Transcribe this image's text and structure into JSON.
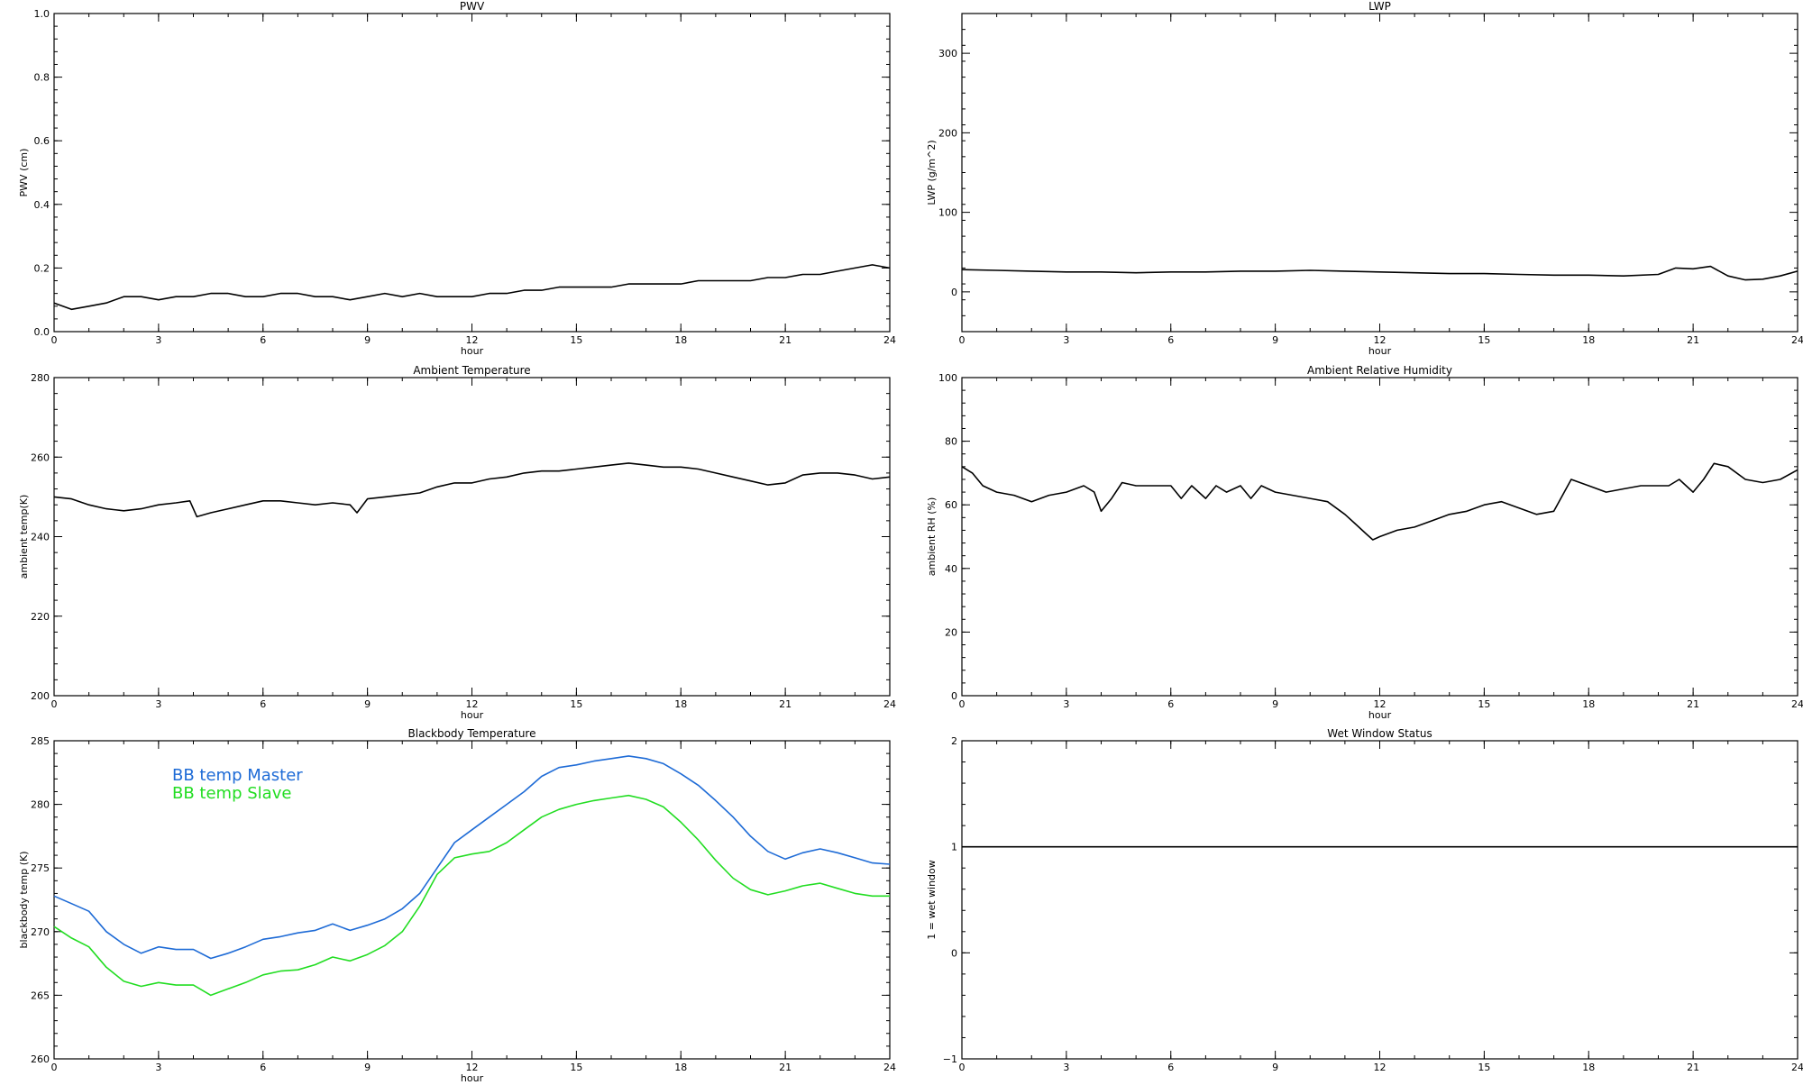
{
  "chart_data": [
    {
      "id": "pwv",
      "type": "line",
      "title": "PWV",
      "xlabel": "hour",
      "ylabel": "PWV (cm)",
      "xlim": [
        0,
        24
      ],
      "ylim": [
        0.0,
        1.0
      ],
      "xticks": [
        "0",
        "3",
        "6",
        "9",
        "12",
        "15",
        "18",
        "21",
        "24"
      ],
      "yticks": [
        "0.0",
        "0.2",
        "0.4",
        "0.6",
        "0.8",
        "1.0"
      ],
      "grid": false,
      "series": [
        {
          "color": "#000000",
          "x": [
            0,
            0.5,
            1,
            1.5,
            2,
            2.5,
            3,
            3.5,
            4,
            4.5,
            5,
            5.5,
            6,
            6.5,
            7,
            7.5,
            8,
            8.5,
            9,
            9.5,
            10,
            10.5,
            11,
            11.5,
            12,
            12.5,
            13,
            13.5,
            14,
            14.5,
            15,
            15.5,
            16,
            16.5,
            17,
            17.5,
            18,
            18.5,
            19,
            19.5,
            20,
            20.5,
            21,
            21.5,
            22,
            22.5,
            23,
            23.5,
            24
          ],
          "y": [
            0.09,
            0.07,
            0.08,
            0.09,
            0.11,
            0.11,
            0.1,
            0.11,
            0.11,
            0.12,
            0.12,
            0.11,
            0.11,
            0.12,
            0.12,
            0.11,
            0.11,
            0.1,
            0.11,
            0.12,
            0.11,
            0.12,
            0.11,
            0.11,
            0.11,
            0.12,
            0.12,
            0.13,
            0.13,
            0.14,
            0.14,
            0.14,
            0.14,
            0.15,
            0.15,
            0.15,
            0.15,
            0.16,
            0.16,
            0.16,
            0.16,
            0.17,
            0.17,
            0.18,
            0.18,
            0.19,
            0.2,
            0.21,
            0.2
          ]
        }
      ]
    },
    {
      "id": "lwp",
      "type": "line",
      "title": "LWP",
      "xlabel": "hour",
      "ylabel": "LWP (g/m^2)",
      "xlim": [
        0,
        24
      ],
      "ylim": [
        -50,
        350
      ],
      "xticks": [
        "0",
        "3",
        "6",
        "9",
        "12",
        "15",
        "18",
        "21",
        "24"
      ],
      "yticks": [
        "0",
        "100",
        "200",
        "300"
      ],
      "grid": false,
      "series": [
        {
          "color": "#000000",
          "x": [
            0,
            1,
            2,
            3,
            4,
            5,
            6,
            7,
            8,
            9,
            10,
            11,
            12,
            13,
            14,
            15,
            16,
            17,
            18,
            19,
            20,
            20.5,
            21,
            21.5,
            22,
            22.5,
            23,
            23.5,
            24
          ],
          "y": [
            28,
            27,
            26,
            25,
            25,
            24,
            25,
            25,
            26,
            26,
            27,
            26,
            25,
            24,
            23,
            23,
            22,
            21,
            21,
            20,
            22,
            30,
            29,
            32,
            20,
            15,
            16,
            20,
            26
          ]
        }
      ]
    },
    {
      "id": "ambient-temp",
      "type": "line",
      "title": "Ambient Temperature",
      "xlabel": "hour",
      "ylabel": "ambient temp(K)",
      "xlim": [
        0,
        24
      ],
      "ylim": [
        200,
        280
      ],
      "xticks": [
        "0",
        "3",
        "6",
        "9",
        "12",
        "15",
        "18",
        "21",
        "24"
      ],
      "yticks": [
        "200",
        "220",
        "240",
        "260",
        "280"
      ],
      "grid": false,
      "series": [
        {
          "color": "#000000",
          "x": [
            0,
            0.5,
            1,
            1.5,
            2,
            2.5,
            3,
            3.5,
            3.9,
            4.1,
            4.5,
            5,
            5.5,
            6,
            6.5,
            7,
            7.5,
            8,
            8.5,
            8.7,
            9,
            9.5,
            10,
            10.5,
            11,
            11.5,
            12,
            12.5,
            13,
            13.5,
            14,
            14.5,
            15,
            15.5,
            16,
            16.5,
            17,
            17.5,
            18,
            18.5,
            19,
            19.5,
            20,
            20.5,
            21,
            21.5,
            22,
            22.5,
            23,
            23.5,
            24
          ],
          "y": [
            250,
            249.5,
            248,
            247,
            246.5,
            247,
            248,
            248.5,
            249,
            245,
            246,
            247,
            248,
            249,
            249,
            248.5,
            248,
            248.5,
            248,
            246,
            249.5,
            250,
            250.5,
            251,
            252.5,
            253.5,
            253.5,
            254.5,
            255,
            256,
            256.5,
            256.5,
            257,
            257.5,
            258,
            258.5,
            258,
            257.5,
            257.5,
            257,
            256,
            255,
            254,
            253,
            253.5,
            255.5,
            256,
            256,
            255.5,
            254.5,
            255
          ]
        }
      ]
    },
    {
      "id": "ambient-rh",
      "type": "line",
      "title": "Ambient Relative Humidity",
      "xlabel": "hour",
      "ylabel": "ambient RH (%)",
      "xlim": [
        0,
        24
      ],
      "ylim": [
        0,
        100
      ],
      "xticks": [
        "0",
        "3",
        "6",
        "9",
        "12",
        "15",
        "18",
        "21",
        "24"
      ],
      "yticks": [
        "0",
        "20",
        "40",
        "60",
        "80",
        "100"
      ],
      "grid": false,
      "series": [
        {
          "color": "#000000",
          "x": [
            0,
            0.3,
            0.6,
            1,
            1.5,
            2,
            2.5,
            3,
            3.5,
            3.8,
            4,
            4.3,
            4.6,
            5,
            5.5,
            6,
            6.3,
            6.6,
            7,
            7.3,
            7.6,
            8,
            8.3,
            8.6,
            9,
            9.5,
            10,
            10.5,
            11,
            11.3,
            11.6,
            11.8,
            12,
            12.5,
            13,
            13.5,
            14,
            14.5,
            15,
            15.5,
            16,
            16.5,
            17,
            17.5,
            18,
            18.5,
            19,
            19.5,
            20,
            20.3,
            20.6,
            21,
            21.3,
            21.6,
            22,
            22.5,
            23,
            23.5,
            24
          ],
          "y": [
            72,
            70,
            66,
            64,
            63,
            61,
            63,
            64,
            66,
            64,
            58,
            62,
            67,
            66,
            66,
            66,
            62,
            66,
            62,
            66,
            64,
            66,
            62,
            66,
            64,
            63,
            62,
            61,
            57,
            54,
            51,
            49,
            50,
            52,
            53,
            55,
            57,
            58,
            60,
            61,
            59,
            57,
            58,
            68,
            66,
            64,
            65,
            66,
            66,
            66,
            68,
            64,
            68,
            73,
            72,
            68,
            67,
            68,
            71
          ]
        }
      ]
    },
    {
      "id": "bb-temp",
      "type": "line",
      "title": "Blackbody Temperature",
      "xlabel": "hour",
      "ylabel": "blackbody temp (K)",
      "xlim": [
        0,
        24
      ],
      "ylim": [
        260,
        285
      ],
      "xticks": [
        "0",
        "3",
        "6",
        "9",
        "12",
        "15",
        "18",
        "21",
        "24"
      ],
      "yticks": [
        "260",
        "265",
        "270",
        "275",
        "280",
        "285"
      ],
      "grid": false,
      "legend": [
        "BB temp Master",
        "BB temp Slave"
      ],
      "series": [
        {
          "name": "BB temp Master",
          "color": "#1e6bd6",
          "x": [
            0,
            0.5,
            1,
            1.5,
            2,
            2.5,
            3,
            3.5,
            4,
            4.5,
            5,
            5.5,
            6,
            6.5,
            7,
            7.5,
            8,
            8.5,
            9,
            9.5,
            10,
            10.5,
            11,
            11.5,
            12,
            12.5,
            13,
            13.5,
            14,
            14.5,
            15,
            15.5,
            16,
            16.5,
            17,
            17.5,
            18,
            18.5,
            19,
            19.5,
            20,
            20.5,
            21,
            21.5,
            22,
            22.5,
            23,
            23.5,
            24
          ],
          "y": [
            272.8,
            272.2,
            271.6,
            270.0,
            269.0,
            268.3,
            268.8,
            268.6,
            268.6,
            267.9,
            268.3,
            268.8,
            269.4,
            269.6,
            269.9,
            270.1,
            270.6,
            270.1,
            270.5,
            271.0,
            271.8,
            273.0,
            275.0,
            277.0,
            278.0,
            279.0,
            280.0,
            281.0,
            282.2,
            282.9,
            283.1,
            283.4,
            283.6,
            283.8,
            283.6,
            283.2,
            282.4,
            281.5,
            280.3,
            279.0,
            277.5,
            276.3,
            275.7,
            276.2,
            276.5,
            276.2,
            275.8,
            275.4,
            275.3
          ]
        },
        {
          "name": "BB temp Slave",
          "color": "#22dd22",
          "x": [
            0,
            0.5,
            1,
            1.5,
            2,
            2.5,
            3,
            3.5,
            4,
            4.5,
            5,
            5.5,
            6,
            6.5,
            7,
            7.5,
            8,
            8.5,
            9,
            9.5,
            10,
            10.5,
            11,
            11.5,
            12,
            12.5,
            13,
            13.5,
            14,
            14.5,
            15,
            15.5,
            16,
            16.5,
            17,
            17.5,
            18,
            18.5,
            19,
            19.5,
            20,
            20.5,
            21,
            21.5,
            22,
            22.5,
            23,
            23.5,
            24
          ],
          "y": [
            270.4,
            269.5,
            268.8,
            267.2,
            266.1,
            265.7,
            266.0,
            265.8,
            265.8,
            265.0,
            265.5,
            266.0,
            266.6,
            266.9,
            267.0,
            267.4,
            268.0,
            267.7,
            268.2,
            268.9,
            270.0,
            272.0,
            274.5,
            275.8,
            276.1,
            276.3,
            277.0,
            278.0,
            279.0,
            279.6,
            280.0,
            280.3,
            280.5,
            280.7,
            280.4,
            279.8,
            278.6,
            277.2,
            275.6,
            274.2,
            273.3,
            272.9,
            273.2,
            273.6,
            273.8,
            273.4,
            273.0,
            272.8,
            272.8
          ]
        }
      ]
    },
    {
      "id": "wet-window",
      "type": "line",
      "title": "Wet Window Status",
      "xlabel": "",
      "ylabel": "1 = wet window",
      "xlim": [
        0,
        24
      ],
      "ylim": [
        -1,
        2
      ],
      "xticks": [
        "0",
        "3",
        "6",
        "9",
        "12",
        "15",
        "18",
        "21",
        "24"
      ],
      "yticks": [
        "−1",
        "0",
        "1",
        "2"
      ],
      "grid": false,
      "series": [
        {
          "color": "#000000",
          "x": [
            0,
            24
          ],
          "y": [
            1,
            1
          ]
        }
      ]
    }
  ]
}
